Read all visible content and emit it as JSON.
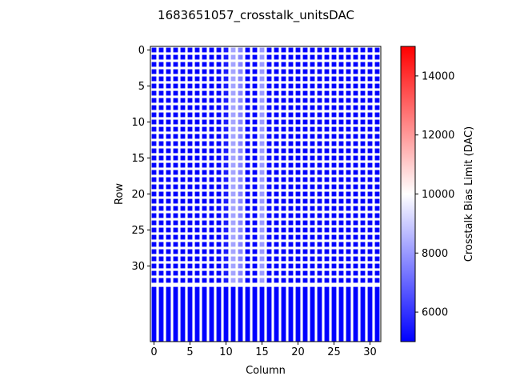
{
  "chart_data": {
    "type": "heatmap",
    "title": "1683651057_crosstalk_unitsDAC",
    "xlabel": "Column",
    "ylabel": "Row",
    "colorbar_label": "Crosstalk Bias Limit (DAC)",
    "n_cols": 32,
    "n_rows": 41,
    "x_ticks": [
      0,
      5,
      10,
      15,
      20,
      25,
      30
    ],
    "y_ticks": [
      0,
      5,
      10,
      15,
      20,
      25,
      30
    ],
    "colorbar_range": [
      5000,
      15000
    ],
    "colorbar_ticks": [
      6000,
      8000,
      10000,
      12000,
      14000
    ],
    "colormap": [
      "#0000ff",
      "#ffffff",
      "#ff0000"
    ],
    "grid_rows_with_pattern": 33,
    "background_value": 5000,
    "base_pixel_value": 5000,
    "column_values": [
      5000,
      5000,
      5000,
      5000,
      5000,
      5000,
      5000,
      5000,
      5000,
      5000,
      5500,
      8200,
      7600,
      5000,
      5000,
      8000,
      5000,
      5000,
      5000,
      5000,
      5000,
      5000,
      5000,
      5000,
      5000,
      5000,
      5000,
      5000,
      5000,
      5000,
      5000,
      5000
    ],
    "gap_value": 10000
  }
}
